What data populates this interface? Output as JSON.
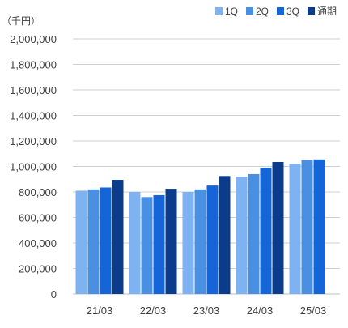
{
  "chart_data": {
    "type": "bar",
    "unit_label": "（千円）",
    "categories": [
      "21/03",
      "22/03",
      "23/03",
      "24/03",
      "25/03"
    ],
    "series": [
      {
        "name": "1Q",
        "color": "#7FB2F0",
        "values": [
          810000,
          800000,
          800000,
          920000,
          1020000
        ]
      },
      {
        "name": "2Q",
        "color": "#4A90E2",
        "values": [
          820000,
          760000,
          820000,
          940000,
          1050000
        ]
      },
      {
        "name": "3Q",
        "color": "#1565D8",
        "values": [
          835000,
          775000,
          850000,
          990000,
          1055000
        ]
      },
      {
        "name": "通期",
        "color": "#0B3C8C",
        "values": [
          895000,
          825000,
          925000,
          1035000,
          null
        ]
      }
    ],
    "ylim": [
      0,
      2000000
    ],
    "yticks": [
      0,
      200000,
      400000,
      600000,
      800000,
      1000000,
      1200000,
      1400000,
      1600000,
      1800000,
      2000000
    ],
    "ytick_labels": [
      "0",
      "200,000",
      "400,000",
      "600,000",
      "800,000",
      "1,000,000",
      "1,200,000",
      "1,400,000",
      "1,600,000",
      "1,800,000",
      "2,000,000"
    ],
    "grid": true,
    "legend_position": "top-right",
    "axis_color": "#BFBFBF",
    "text_color": "#404040"
  }
}
